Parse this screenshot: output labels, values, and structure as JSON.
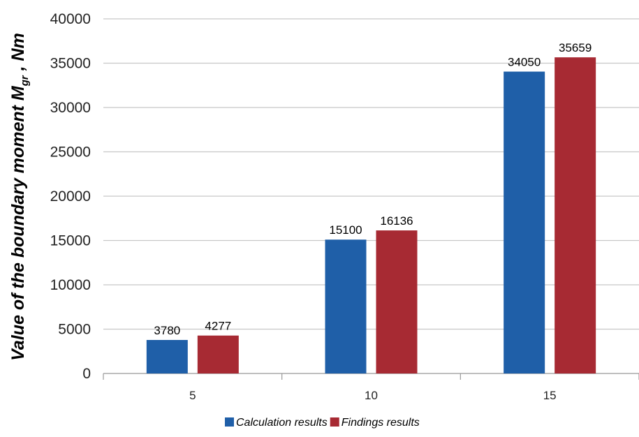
{
  "chart_data": {
    "type": "bar",
    "categories": [
      "5",
      "10",
      "15"
    ],
    "series": [
      {
        "name": "Calculation results",
        "values": [
          3780,
          15100,
          34050
        ],
        "color": "#1f5fa8"
      },
      {
        "name": "Findings results",
        "values": [
          4277,
          16136,
          35659
        ],
        "color": "#a72a33"
      }
    ],
    "ylabel": {
      "main": "Value of the boundary moment M",
      "sub": "gr",
      "tail": " , Nm"
    },
    "ylim": [
      0,
      40000
    ],
    "ytick_step": 5000,
    "grid": true,
    "legend_position": "bottom-center",
    "data_labels": true
  }
}
